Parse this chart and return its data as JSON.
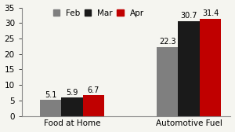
{
  "categories": [
    "Food at Home",
    "Automotive Fuel"
  ],
  "months": [
    "Feb",
    "Mar",
    "Apr"
  ],
  "values": {
    "Food at Home": [
      5.1,
      5.9,
      6.7
    ],
    "Automotive Fuel": [
      22.3,
      30.7,
      31.4
    ]
  },
  "bar_colors": [
    "#7f7f7f",
    "#1a1a1a",
    "#c00000"
  ],
  "ylim": [
    0,
    35
  ],
  "yticks": [
    0,
    5,
    10,
    15,
    20,
    25,
    30,
    35
  ],
  "background_color": "#f5f5f0",
  "label_fontsize": 7,
  "legend_fontsize": 7.5,
  "tick_fontsize": 7.5,
  "bar_width": 0.18,
  "group_centers": [
    0.32,
    1.3
  ]
}
